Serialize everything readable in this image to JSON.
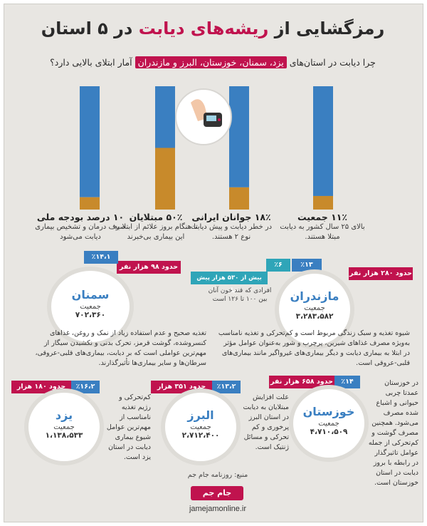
{
  "title": {
    "part1": "رمزگشایی از",
    "accent": "ریشه‌های دیابت",
    "part2": "در ۵ استان"
  },
  "subtitle": {
    "before": "چرا دیابت در استان‌های",
    "highlight": "یزد، سمنان، خوزستان، البرز و مازندران",
    "after": "آمار ابتلای بالایی دارد؟"
  },
  "colors": {
    "blue": "#3a7fc1",
    "orange": "#c88a2b",
    "red": "#c0134e"
  },
  "chart_data": {
    "type": "bar",
    "categories": [
      "۱۱٪ جمعیت",
      "۱۸٪ جوانان ایرانی",
      "۵۰٪ مبتلایان",
      "۱۰ درصد بودجه ملی"
    ],
    "values": [
      11,
      18,
      50,
      10
    ],
    "ylim": [
      0,
      100
    ],
    "colors": {
      "filled": "#c88a2b",
      "rest": "#3a7fc1"
    }
  },
  "bars": [
    {
      "headline": "۱۱٪ جمعیت",
      "text": "بالای ۲۵ سال کشور به دیابت مبتلا هستند."
    },
    {
      "headline": "۱۸٪ جوانان ایرانی",
      "text": "در خطر دیابت و پیش دیابت نوع ۲ هستند."
    },
    {
      "headline": "۵۰٪ مبتلایان",
      "text": "تا هنگام بروز علائم از ابتلا به این بیماری بی‌خبرند"
    },
    {
      "headline": "۱۰ درصد بودجه ملی",
      "text": "صرف درمان و تشخیص بیماری دیابت می‌شود"
    }
  ],
  "provinces": {
    "mazandaran": {
      "name": "مازندران",
      "label": "جمعیت",
      "pop": "۳،۲۸۳،۵۸۲",
      "percent": "٪۱۳",
      "count": "حدود ۲۸۰ هزار نفر",
      "pre_percent": "٪۶",
      "pre_label": "بیش از ۵۳۰ هزار پیش دیابتی",
      "pre_note": "افرادی که قند خون آنان بین ۱۰۰ تا ۱۲۶ است",
      "text": "شیوه تغذیه و سبک زندگی مربوط است و کم‌تحرکی و تغذیه نامناسب به‌ویژه مصرف غذاهای شیرین، پرچرب و شور به‌عنوان عوامل مؤثر در ابتلا به بیماری دیابت و دیگر بیماری‌های غیرواگیر مانند بیماری‌های قلبی-عروقی است."
    },
    "semnan": {
      "name": "سمنان",
      "label": "جمعیت",
      "pop": "۷۰۲،۳۶۰",
      "percent": "٪۱۴،۱",
      "count": "حدود ۹۸ هزار نفر",
      "text": "تغذیه صحیح و عدم استفاده زیاد از نمک و روغن، غذاهای کنسروشده، گوشت قرمز، تحرک بدنی و نکشیدن سیگار از مهم‌ترین عواملی است که بر دیابت، بیماری‌های قلبی-عروقی، سرطان‌ها و سایر بیماری‌ها تأثیرگذارند."
    },
    "khuzestan": {
      "name": "خوزستان",
      "label": "جمعیت",
      "pop": "۴،۷۱۰،۵۰۹",
      "percent": "٪۱۴",
      "count": "حدود ۶۵۸ هزار نفر",
      "text": "در خوزستان عمدتا چربی حیوانی و اشباع شده مصرف می‌شود. همچنین مصرف گوشت و کم‌تحرکی از جمله عوامل تاثیرگذار در رابطه با بروز دیابت در استان خوزستان است."
    },
    "alborz": {
      "name": "البرز",
      "label": "جمعیت",
      "pop": "۲،۷۱۲،۴۰۰",
      "percent": "٪۱۳،۲",
      "count": "حدود ۳۵۱ هزار نفر",
      "text": "علت افزایش مبتلایان به دیابت در استان البرز پرخوری و کم تحرکی و مسائل ژنتیک است."
    },
    "yazd": {
      "name": "یزد",
      "label": "جمعیت",
      "pop": "۱،۱۳۸،۵۳۳",
      "percent": "٪۱۶،۲",
      "count": "حدود ۱۸۰ هزار نفر",
      "text": "کم‌تحرکی و رژیم تغذیه نامناسب از مهم‌ترین عوامل شیوع بیماری دیابت در استان یزد است."
    }
  },
  "source": "منبع: روزنامه جام جم",
  "logo": "جام جم",
  "site": "jamejamonline.ir"
}
